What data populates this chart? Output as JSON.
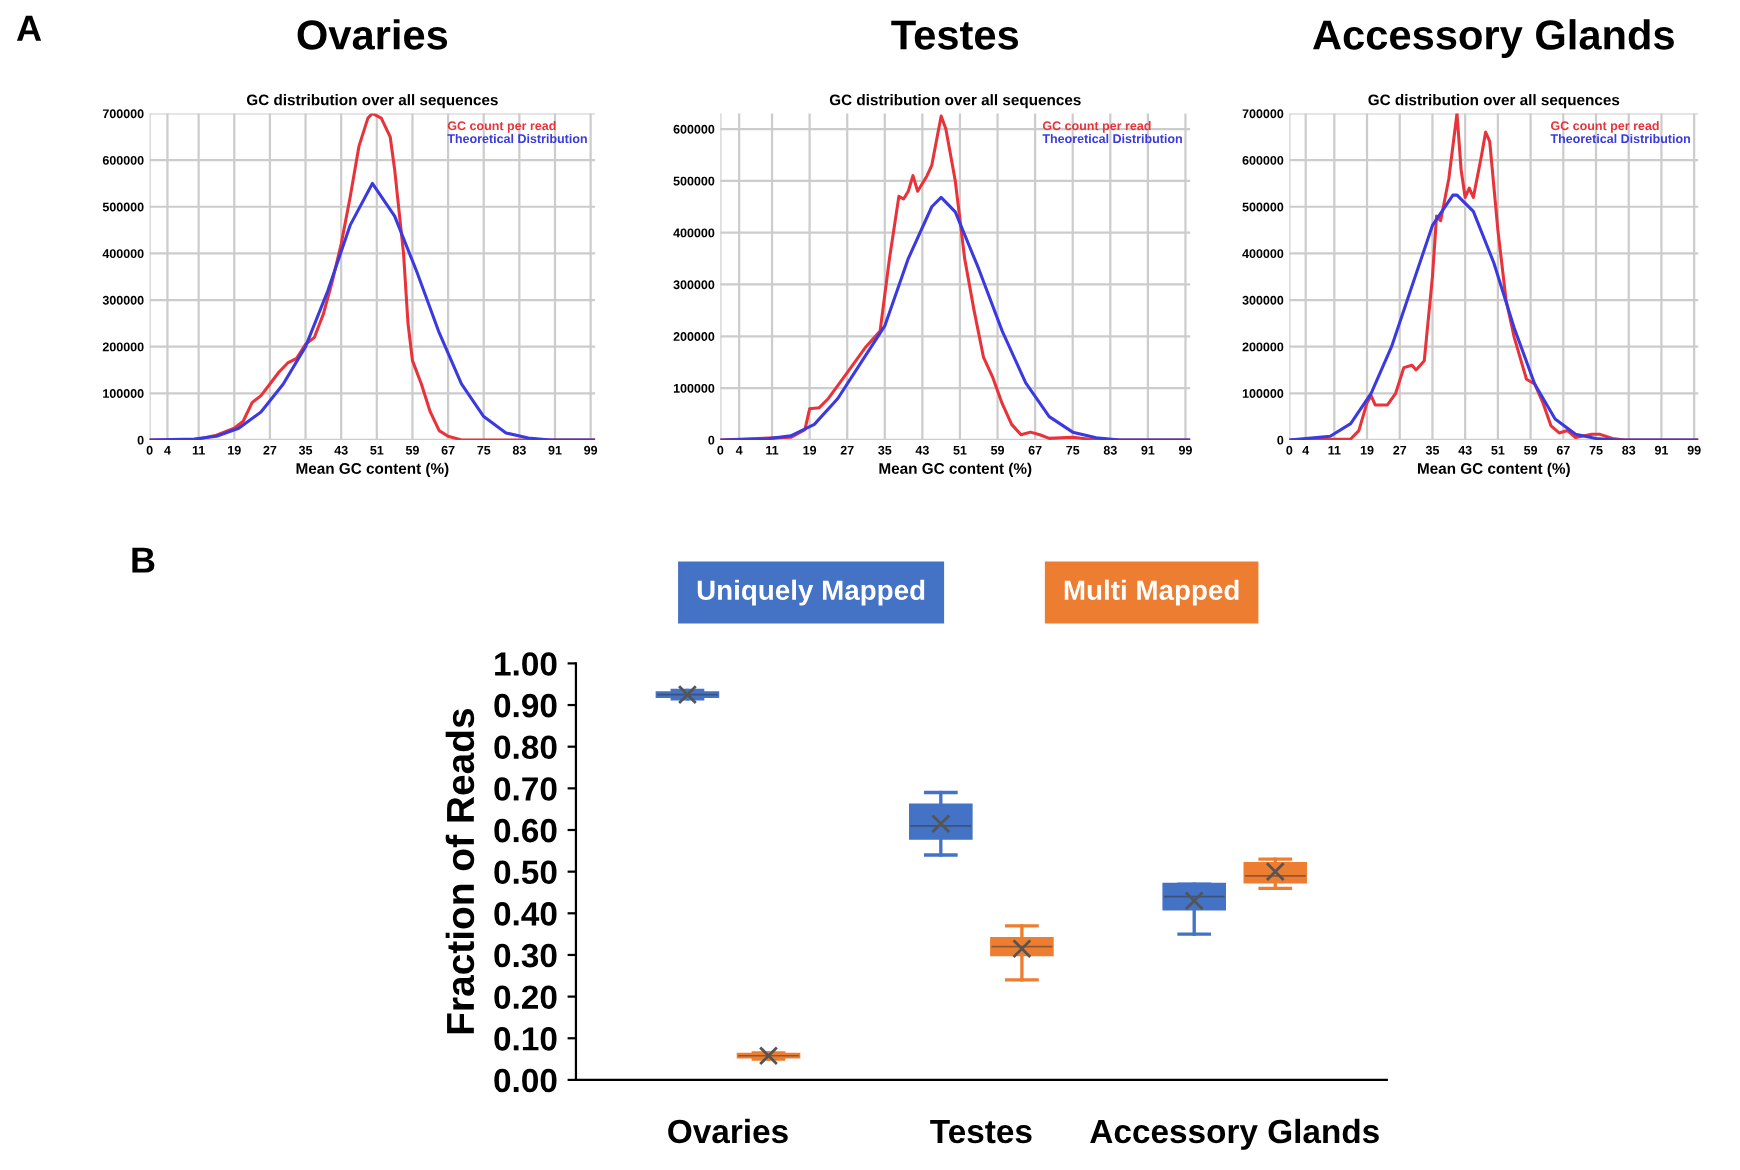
{
  "chart_data": [
    {
      "type": "line",
      "title": "Ovaries",
      "subtitle": "GC distribution over all sequences",
      "xlabel": "Mean GC content (%)",
      "annotations": [
        "A"
      ],
      "xlim": [
        0,
        100
      ],
      "xticks": [
        0,
        4,
        11,
        19,
        27,
        35,
        43,
        51,
        59,
        67,
        75,
        83,
        91,
        99
      ],
      "ylim": [
        0,
        700000
      ],
      "yticks": [
        0,
        100000,
        200000,
        300000,
        400000,
        500000,
        600000,
        700000
      ],
      "grid": true,
      "legend": "top right",
      "series": [
        {
          "name": "GC count per read",
          "color": "#e8333a",
          "x": [
            0,
            10,
            15,
            19,
            21,
            23,
            25,
            27,
            29,
            31,
            33,
            35,
            37,
            39,
            41,
            43,
            45,
            47,
            49,
            50,
            52,
            54,
            55,
            57,
            58,
            59,
            61,
            63,
            65,
            67,
            70,
            100
          ],
          "values": [
            0,
            0,
            10000,
            25000,
            40000,
            80000,
            95000,
            120000,
            145000,
            165000,
            175000,
            205000,
            220000,
            270000,
            340000,
            420000,
            520000,
            630000,
            690000,
            700000,
            690000,
            650000,
            580000,
            400000,
            250000,
            170000,
            120000,
            60000,
            20000,
            8000,
            0,
            0
          ]
        },
        {
          "name": "Theoretical Distribution",
          "color": "#3a3ae0",
          "x": [
            0,
            10,
            15,
            20,
            25,
            30,
            35,
            40,
            45,
            50,
            55,
            60,
            65,
            70,
            75,
            80,
            85,
            90,
            100
          ],
          "values": [
            0,
            2000,
            8000,
            25000,
            60000,
            120000,
            200000,
            320000,
            460000,
            550000,
            480000,
            360000,
            230000,
            120000,
            50000,
            15000,
            4000,
            0,
            0
          ]
        }
      ]
    },
    {
      "type": "line",
      "title": "Testes",
      "subtitle": "GC distribution over all sequences",
      "xlabel": "Mean GC content (%)",
      "xlim": [
        0,
        100
      ],
      "xticks": [
        0,
        4,
        11,
        19,
        27,
        35,
        43,
        51,
        59,
        67,
        75,
        83,
        91,
        99
      ],
      "ylim": [
        0,
        630000
      ],
      "yticks": [
        0,
        100000,
        200000,
        300000,
        400000,
        500000,
        600000
      ],
      "grid": true,
      "legend": "top right",
      "series": [
        {
          "name": "GC count per read",
          "color": "#e8333a",
          "x": [
            0,
            15,
            18,
            19,
            21,
            23,
            27,
            31,
            34,
            36,
            38,
            39,
            40,
            41,
            42,
            44,
            45,
            47,
            48,
            50,
            52,
            54,
            56,
            58,
            60,
            62,
            64,
            66,
            68,
            70,
            75,
            80,
            100
          ],
          "values": [
            0,
            5000,
            20000,
            60000,
            62000,
            80000,
            130000,
            180000,
            210000,
            350000,
            470000,
            465000,
            480000,
            510000,
            480000,
            510000,
            530000,
            625000,
            600000,
            500000,
            350000,
            250000,
            160000,
            120000,
            70000,
            30000,
            10000,
            15000,
            10000,
            3000,
            5000,
            0,
            0
          ]
        },
        {
          "name": "Theoretical Distribution",
          "color": "#3a3ae0",
          "x": [
            0,
            10,
            15,
            20,
            25,
            30,
            35,
            40,
            45,
            47,
            50,
            55,
            60,
            65,
            70,
            75,
            80,
            85,
            100
          ],
          "values": [
            0,
            2000,
            8000,
            30000,
            80000,
            150000,
            220000,
            350000,
            450000,
            468000,
            440000,
            330000,
            210000,
            110000,
            45000,
            15000,
            4000,
            0,
            0
          ]
        }
      ]
    },
    {
      "type": "line",
      "title": "Accessory Glands",
      "subtitle": "GC distribution over all sequences",
      "xlabel": "Mean GC content (%)",
      "xlim": [
        0,
        100
      ],
      "xticks": [
        0,
        4,
        11,
        19,
        27,
        35,
        43,
        51,
        59,
        67,
        75,
        83,
        91,
        99
      ],
      "ylim": [
        0,
        700000
      ],
      "yticks": [
        0,
        100000,
        200000,
        300000,
        400000,
        500000,
        600000,
        700000
      ],
      "grid": true,
      "legend": "top right",
      "series": [
        {
          "name": "GC count per read",
          "color": "#e8333a",
          "x": [
            0,
            15,
            17,
            19,
            20,
            21,
            24,
            26,
            28,
            30,
            31,
            33,
            35,
            36,
            37,
            39,
            41,
            42,
            43,
            44,
            45,
            47,
            48,
            49,
            51,
            53,
            55,
            57,
            58,
            60,
            62,
            64,
            66,
            68,
            70,
            74,
            76,
            79,
            82,
            100
          ],
          "values": [
            0,
            2000,
            20000,
            80000,
            95000,
            75000,
            75000,
            100000,
            155000,
            160000,
            150000,
            170000,
            350000,
            480000,
            470000,
            560000,
            700000,
            580000,
            520000,
            540000,
            520000,
            610000,
            660000,
            640000,
            450000,
            300000,
            220000,
            160000,
            130000,
            120000,
            80000,
            30000,
            15000,
            20000,
            5000,
            12000,
            12000,
            3000,
            0,
            0
          ]
        },
        {
          "name": "Theoretical Distribution",
          "color": "#3a3ae0",
          "x": [
            0,
            10,
            15,
            20,
            25,
            30,
            35,
            40,
            41,
            45,
            50,
            55,
            60,
            65,
            70,
            75,
            80,
            100
          ],
          "values": [
            0,
            8000,
            35000,
            100000,
            200000,
            330000,
            460000,
            525000,
            525000,
            490000,
            380000,
            240000,
            120000,
            45000,
            12000,
            3000,
            0,
            0
          ]
        }
      ]
    },
    {
      "type": "box",
      "ylabel": "Fraction of Reads",
      "annotations": [
        "B"
      ],
      "categories": [
        "Ovaries",
        "Testes",
        "Accessory Glands"
      ],
      "ylim": [
        0,
        1
      ],
      "yticks": [
        {
          "value": 0,
          "label": "0.00"
        },
        {
          "value": 0.1,
          "label": "0.10"
        },
        {
          "value": 0.2,
          "label": "0.20"
        },
        {
          "value": 0.3,
          "label": "0.30"
        },
        {
          "value": 0.4,
          "label": "0.40"
        },
        {
          "value": 0.5,
          "label": "0.50"
        },
        {
          "value": 0.6,
          "label": "0.60"
        },
        {
          "value": 0.7,
          "label": "0.70"
        },
        {
          "value": 0.8,
          "label": "0.80"
        },
        {
          "value": 0.9,
          "label": "0.90"
        },
        {
          "value": 1,
          "label": "1.00"
        }
      ],
      "legend": "top",
      "marker": "cross",
      "series": [
        {
          "name": "Uniquely Mapped",
          "color": "#4472c4",
          "boxes": [
            {
              "low": 0.915,
              "q1": 0.92,
              "median": 0.925,
              "q3": 0.93,
              "high": 0.935,
              "mean": 0.925
            },
            {
              "low": 0.54,
              "q1": 0.58,
              "median": 0.61,
              "q3": 0.66,
              "high": 0.69,
              "mean": 0.615
            },
            {
              "low": 0.35,
              "q1": 0.41,
              "median": 0.44,
              "q3": 0.47,
              "high": 0.47,
              "mean": 0.43
            }
          ]
        },
        {
          "name": "Multi Mapped",
          "color": "#ed7d31",
          "boxes": [
            {
              "low": 0.05,
              "q1": 0.055,
              "median": 0.058,
              "q3": 0.062,
              "high": 0.065,
              "mean": 0.058
            },
            {
              "low": 0.24,
              "q1": 0.3,
              "median": 0.32,
              "q3": 0.34,
              "high": 0.37,
              "mean": 0.315
            },
            {
              "low": 0.46,
              "q1": 0.475,
              "median": 0.49,
              "q3": 0.52,
              "high": 0.53,
              "mean": 0.5
            }
          ]
        }
      ]
    }
  ]
}
